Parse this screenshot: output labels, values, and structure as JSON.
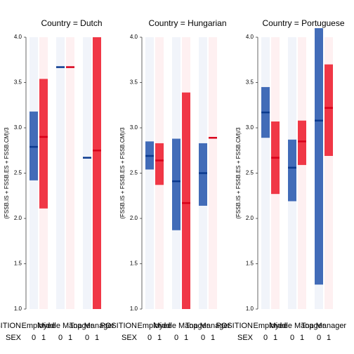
{
  "chart_data": [
    {
      "type": "bar",
      "title": "Country = Dutch",
      "ylabel": "(FSSB.IS + FSSB.ES + FSSB.CM)/3",
      "xlabel": "POSITION",
      "sublabel": "SEX",
      "categories": [
        "Employee",
        "Middle Manager",
        "Top Manager"
      ],
      "ylim": [
        1,
        4
      ],
      "yticks": [
        {
          "value": 1,
          "label": "1.0"
        },
        {
          "value": 1.5,
          "label": "1.5"
        },
        {
          "value": 2,
          "label": "2.0"
        },
        {
          "value": 2.5,
          "label": "2.5"
        },
        {
          "value": 3,
          "label": "3.0"
        },
        {
          "value": 3.5,
          "label": "3.5"
        },
        {
          "value": 4,
          "label": "4.0"
        }
      ],
      "series": [
        {
          "name": "0",
          "color": "#2f5db0",
          "values": [
            2.79,
            3.67,
            2.67
          ],
          "lower": [
            2.42,
            3.67,
            2.67
          ],
          "upper": [
            3.18,
            3.67,
            2.67
          ]
        },
        {
          "name": "1",
          "color": "#ee2233",
          "values": [
            2.9,
            3.67,
            2.75
          ],
          "lower": [
            2.11,
            3.67,
            1.0
          ],
          "upper": [
            3.54,
            3.67,
            4.0
          ]
        }
      ]
    },
    {
      "type": "bar",
      "title": "Country = Hungarian",
      "ylabel": "(FSSB.IS + FSSB.ES + FSSB.CM)/3",
      "xlabel": "POSITION",
      "sublabel": "SEX",
      "categories": [
        "Employee",
        "Middle Manager",
        "Top Manager"
      ],
      "ylim": [
        1,
        4
      ],
      "yticks": [
        {
          "value": 1,
          "label": "1.0"
        },
        {
          "value": 1.5,
          "label": "1.5"
        },
        {
          "value": 2,
          "label": "2.0"
        },
        {
          "value": 2.5,
          "label": "2.5"
        },
        {
          "value": 3,
          "label": "3.0"
        },
        {
          "value": 3.5,
          "label": "3.5"
        },
        {
          "value": 4,
          "label": "4.0"
        }
      ],
      "series": [
        {
          "name": "0",
          "color": "#2f5db0",
          "values": [
            2.69,
            2.41,
            2.5
          ],
          "lower": [
            2.54,
            1.87,
            2.14
          ],
          "upper": [
            2.85,
            2.88,
            2.83
          ]
        },
        {
          "name": "1",
          "color": "#ee2233",
          "values": [
            2.64,
            2.17,
            2.89
          ],
          "lower": [
            2.37,
            1.0,
            2.89
          ],
          "upper": [
            2.83,
            3.39,
            2.89
          ]
        }
      ]
    },
    {
      "type": "bar",
      "title": "Country = Portuguese",
      "ylabel": "(FSSB.IS + FSSB.ES + FSSB.CM)/3",
      "xlabel": "POSITION",
      "sublabel": "SEX",
      "categories": [
        "Employee",
        "Middle Manager",
        "Top Manager"
      ],
      "ylim": [
        1,
        4
      ],
      "yticks": [
        {
          "value": 1,
          "label": "1.0"
        },
        {
          "value": 1.5,
          "label": "1.5"
        },
        {
          "value": 2,
          "label": "2.0"
        },
        {
          "value": 2.5,
          "label": "2.5"
        },
        {
          "value": 3,
          "label": "3.0"
        },
        {
          "value": 3.5,
          "label": "3.5"
        },
        {
          "value": 4,
          "label": "4.0"
        }
      ],
      "series": [
        {
          "name": "0",
          "color": "#2f5db0",
          "values": [
            3.17,
            2.56,
            3.08
          ],
          "lower": [
            2.89,
            2.19,
            1.27
          ],
          "upper": [
            3.45,
            2.87,
            4.1
          ]
        },
        {
          "name": "1",
          "color": "#ee2233",
          "values": [
            2.67,
            2.85,
            3.22
          ],
          "lower": [
            2.27,
            2.59,
            2.69
          ],
          "upper": [
            3.07,
            3.08,
            3.7
          ]
        }
      ]
    }
  ]
}
